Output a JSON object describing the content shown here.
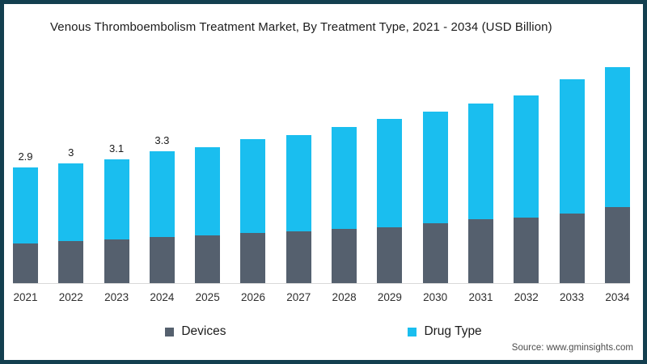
{
  "title": "Venous Thromboembolism Treatment Market, By Treatment Type, 2021 - 2034 (USD Billion)",
  "source": "Source: www.gminsights.com",
  "legend": [
    {
      "label": "Devices",
      "color": "#55606E"
    },
    {
      "label": "Drug Type",
      "color": "#1ABEEF"
    }
  ],
  "colors": {
    "frame_border": "#133F4F",
    "background": "#ffffff",
    "devices": "#55606E",
    "drug_type": "#1ABEEF",
    "axis_line": "#d9d9d9"
  },
  "chart_data": {
    "type": "bar",
    "stacked": true,
    "title": "Venous Thromboembolism Treatment Market, By Treatment Type, 2021 - 2034 (USD Billion)",
    "xlabel": "",
    "ylabel": "",
    "ylim": [
      0,
      5.7
    ],
    "grid": false,
    "legend_position": "bottom",
    "categories": [
      "2021",
      "2022",
      "2023",
      "2024",
      "2025",
      "2026",
      "2027",
      "2028",
      "2029",
      "2030",
      "2031",
      "2032",
      "2033",
      "2034"
    ],
    "series": [
      {
        "name": "Devices",
        "color": "#55606E",
        "values": [
          1.0,
          1.05,
          1.1,
          1.15,
          1.2,
          1.25,
          1.3,
          1.35,
          1.4,
          1.5,
          1.6,
          1.65,
          1.75,
          1.9
        ]
      },
      {
        "name": "Drug Type",
        "color": "#1ABEEF",
        "values": [
          1.9,
          1.95,
          2.0,
          2.15,
          2.2,
          2.35,
          2.4,
          2.55,
          2.7,
          2.8,
          2.9,
          3.05,
          3.35,
          3.5
        ]
      }
    ],
    "totals": [
      2.9,
      3.0,
      3.1,
      3.3,
      3.4,
      3.6,
      3.7,
      3.9,
      4.1,
      4.3,
      4.5,
      4.7,
      5.1,
      5.4
    ],
    "bar_labels": [
      "2.9",
      "3",
      "3.1",
      "3.3",
      "",
      "",
      "",
      "",
      "",
      "",
      "",
      "",
      "",
      ""
    ]
  }
}
